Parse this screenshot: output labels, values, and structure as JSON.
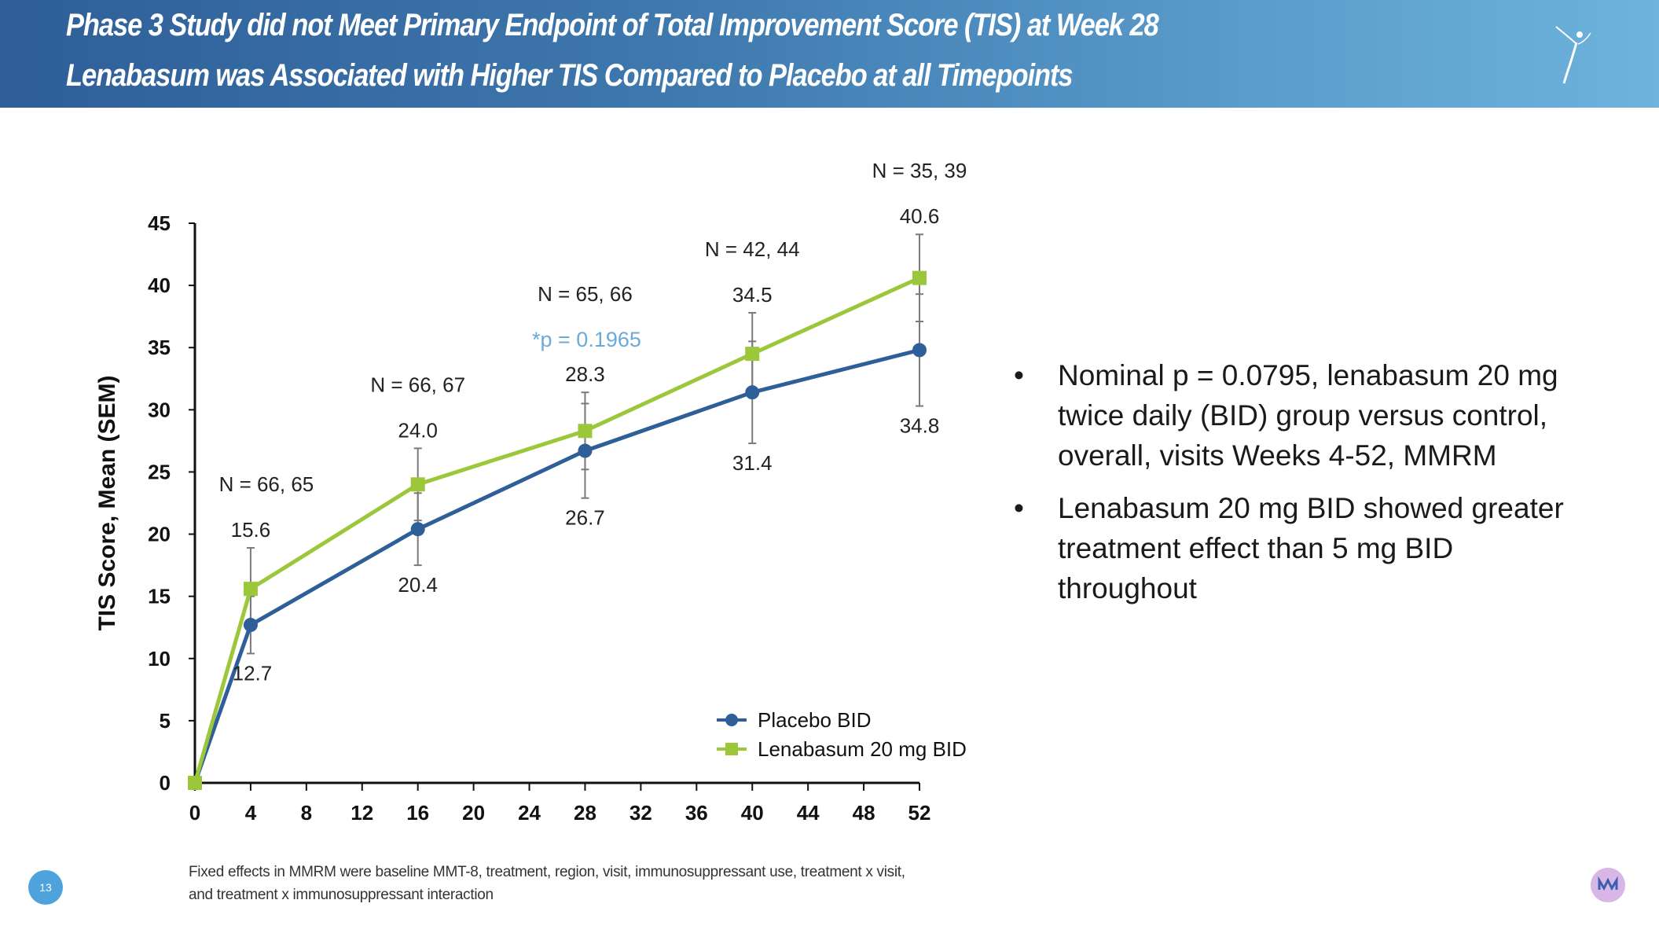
{
  "header": {
    "title_line1": "Phase 3 Study did not Meet Primary Endpoint of Total Improvement Score (TIS) at Week 28",
    "title_line2": "Lenabasum was Associated with Higher TIS Compared to Placebo at all Timepoints"
  },
  "chart_data": {
    "type": "line",
    "xlabel": "",
    "ylabel": "TIS Score, Mean (SEM)",
    "xlim": [
      0,
      52
    ],
    "ylim": [
      0,
      45
    ],
    "xticks": [
      0,
      4,
      8,
      12,
      16,
      20,
      24,
      28,
      32,
      36,
      40,
      44,
      48,
      52
    ],
    "yticks": [
      0,
      5,
      10,
      15,
      20,
      25,
      30,
      35,
      40,
      45
    ],
    "grid": false,
    "legend_position": "bottom-right",
    "series": [
      {
        "name": "Placebo BID",
        "color": "#2e5f99",
        "marker": "circle",
        "x": [
          0,
          4,
          16,
          28,
          40,
          52
        ],
        "y": [
          0,
          12.7,
          20.4,
          26.7,
          31.4,
          34.8
        ],
        "err": [
          0,
          2.3,
          2.9,
          3.8,
          4.1,
          4.5
        ],
        "labels": [
          "",
          "12.7",
          "20.4",
          "26.7",
          "31.4",
          "34.8"
        ]
      },
      {
        "name": "Lenabasum 20 mg BID",
        "color": "#9dc73a",
        "marker": "square",
        "x": [
          0,
          4,
          16,
          28,
          40,
          52
        ],
        "y": [
          0,
          15.6,
          24.0,
          28.3,
          34.5,
          40.6
        ],
        "err": [
          0,
          3.3,
          2.9,
          3.1,
          3.3,
          3.5
        ],
        "labels": [
          "",
          "15.6",
          "24.0",
          "28.3",
          "34.5",
          "40.6"
        ]
      }
    ],
    "n_labels": [
      {
        "x": 4,
        "text": "N = 66, 65"
      },
      {
        "x": 16,
        "text": "N = 66, 67"
      },
      {
        "x": 28,
        "text": "N = 65, 66"
      },
      {
        "x": 40,
        "text": "N = 42, 44"
      },
      {
        "x": 52,
        "text": "N = 35, 39"
      }
    ],
    "annotation": {
      "x": 28,
      "text": "*p = 0.1965",
      "color": "#6aaad8"
    }
  },
  "bullets": [
    "Nominal p = 0.0795, lenabasum 20 mg twice daily (BID) group versus control, overall, visits Weeks 4-52, MMRM",
    "Lenabasum 20 mg BID showed greater treatment effect than 5 mg BID throughout"
  ],
  "bullet_symbol": "•",
  "footnote": {
    "line1": "Fixed effects in MMRM were baseline MMT-8, treatment, region, visit, immunosuppressant use, treatment x visit,",
    "line2": "and treatment x immunosuppressant interaction"
  },
  "page_number": "13",
  "colors": {
    "header_start": "#2f5e98",
    "header_end": "#6db3dc",
    "page_badge": "#4fa3dc"
  }
}
